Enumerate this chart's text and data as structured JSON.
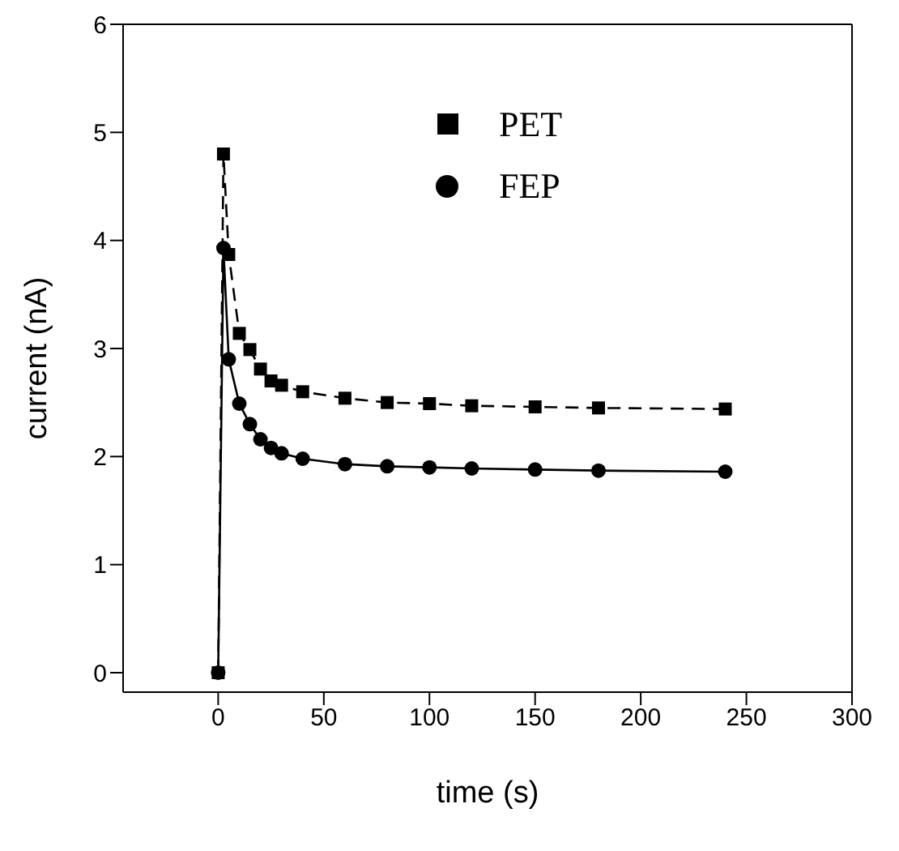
{
  "chart_data": {
    "type": "line",
    "xlabel": "time (s)",
    "ylabel": "current (nA)",
    "xlim": [
      -45,
      300
    ],
    "xticks": [
      0,
      50,
      100,
      150,
      200,
      250,
      300
    ],
    "ylim": [
      -0.18,
      6
    ],
    "yticks": [
      0,
      1,
      2,
      3,
      4,
      5,
      6
    ],
    "x": [
      0,
      2.5,
      5,
      10,
      15,
      20,
      25,
      30,
      40,
      60,
      80,
      100,
      120,
      150,
      180,
      240
    ],
    "series": [
      {
        "name": "PET",
        "color": "#000000",
        "marker": "square",
        "line_style": "dashed",
        "values": [
          0,
          4.8,
          3.87,
          3.14,
          2.99,
          2.81,
          2.7,
          2.66,
          2.6,
          2.54,
          2.5,
          2.49,
          2.47,
          2.46,
          2.45,
          2.44
        ]
      },
      {
        "name": "FEP",
        "color": "#000000",
        "marker": "circle",
        "line_style": "solid",
        "values": [
          0,
          3.93,
          2.9,
          2.49,
          2.3,
          2.16,
          2.08,
          2.03,
          1.98,
          1.93,
          1.91,
          1.9,
          1.89,
          1.88,
          1.87,
          1.86
        ]
      }
    ],
    "grid": false,
    "legend": "top right"
  }
}
